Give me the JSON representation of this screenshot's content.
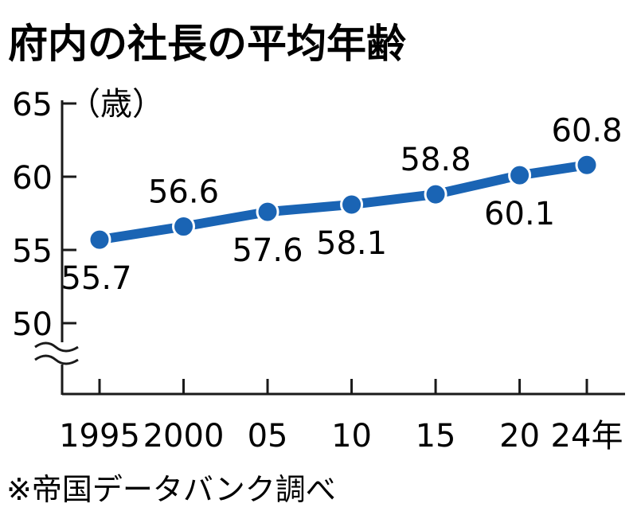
{
  "chart_data": {
    "type": "line",
    "title": "府内の社長の平均年齢",
    "ylabel": "（歳）",
    "source_note": "※帝国データバンク調べ",
    "x_tick_labels": [
      "1995",
      "2000",
      "05",
      "10",
      "15",
      "20",
      "24年"
    ],
    "x": [
      1995,
      2000,
      2005,
      2010,
      2015,
      2020,
      2024
    ],
    "values": [
      55.7,
      56.6,
      57.6,
      58.1,
      58.8,
      60.1,
      60.8
    ],
    "data_labels": [
      "55.7",
      "56.6",
      "57.6",
      "58.1",
      "58.8",
      "60.1",
      "60.8"
    ],
    "y_ticks": [
      50,
      55,
      60,
      65
    ],
    "y_tick_labels": [
      "50",
      "55",
      "60",
      "65"
    ],
    "ylim": [
      50,
      65
    ],
    "axis_break": true,
    "grid": false,
    "line_color": "#1a64b4",
    "axis_color": "#1a1a1a"
  }
}
